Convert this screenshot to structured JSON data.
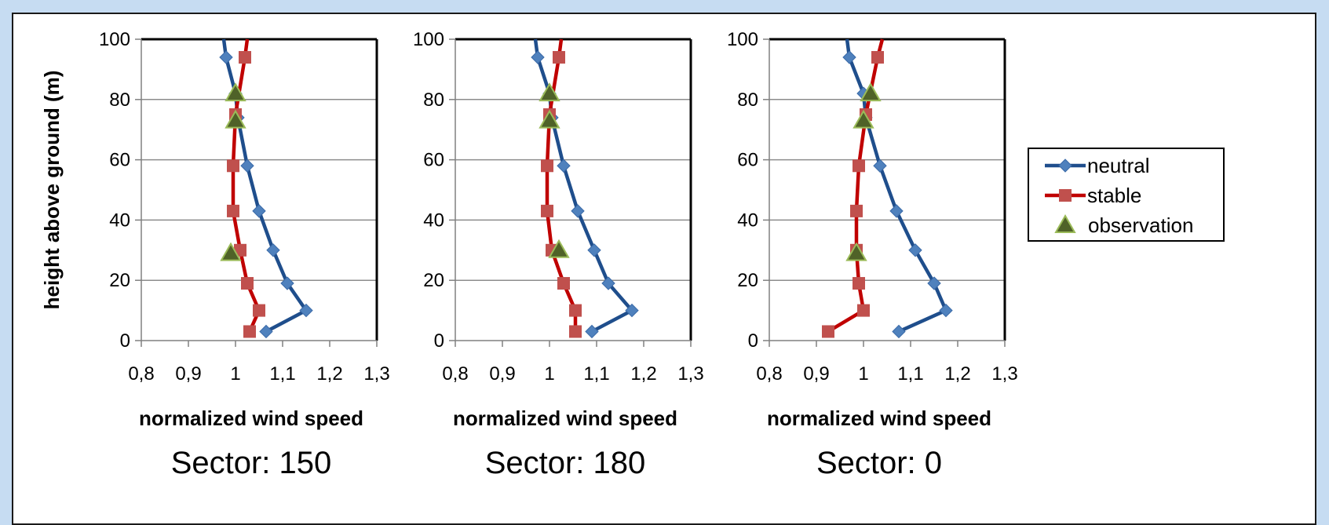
{
  "chart_data": [
    {
      "type": "line",
      "caption": "Sector: 150",
      "xlabel": "normalized wind speed",
      "ylabel": "height above ground (m)",
      "xlim": [
        0.8,
        1.3
      ],
      "ylim": [
        0,
        100
      ],
      "xticks": [
        "0,8",
        "0,9",
        "1",
        "1,1",
        "1,2",
        "1,3"
      ],
      "yticks": [
        "0",
        "20",
        "40",
        "60",
        "80",
        "100"
      ],
      "grid": "horizontal",
      "series": [
        {
          "name": "neutral",
          "color": "#1f4e8c",
          "marker_color": "#4f81bd",
          "marker": "diamond",
          "points": [
            [
              0.975,
              100
            ],
            [
              0.98,
              94
            ],
            [
              1.0,
              82
            ],
            [
              1.005,
              74
            ],
            [
              1.025,
              58
            ],
            [
              1.05,
              43
            ],
            [
              1.08,
              30
            ],
            [
              1.11,
              19
            ],
            [
              1.15,
              10
            ],
            [
              1.065,
              3
            ]
          ]
        },
        {
          "name": "stable",
          "color": "#c00000",
          "marker_color": "#c0504d",
          "marker": "square",
          "points": [
            [
              1.025,
              100
            ],
            [
              1.02,
              94
            ],
            [
              1.0,
              75
            ],
            [
              0.995,
              58
            ],
            [
              0.995,
              43
            ],
            [
              1.01,
              30
            ],
            [
              1.025,
              19
            ],
            [
              1.05,
              10
            ],
            [
              1.03,
              3
            ]
          ]
        },
        {
          "name": "observation",
          "marker_color": "#4f6228",
          "marker": "triangle",
          "line": false,
          "points": [
            [
              1.0,
              82
            ],
            [
              1.0,
              73
            ],
            [
              0.99,
              29
            ]
          ]
        }
      ]
    },
    {
      "type": "line",
      "caption": "Sector: 180",
      "xlabel": "normalized wind speed",
      "xlim": [
        0.8,
        1.3
      ],
      "ylim": [
        0,
        100
      ],
      "xticks": [
        "0,8",
        "0,9",
        "1",
        "1,1",
        "1,2",
        "1,3"
      ],
      "yticks": [
        "0",
        "20",
        "40",
        "60",
        "80",
        "100"
      ],
      "grid": "horizontal",
      "series": [
        {
          "name": "neutral",
          "color": "#1f4e8c",
          "marker_color": "#4f81bd",
          "marker": "diamond",
          "points": [
            [
              0.97,
              100
            ],
            [
              0.975,
              94
            ],
            [
              1.0,
              82
            ],
            [
              1.005,
              74
            ],
            [
              1.03,
              58
            ],
            [
              1.06,
              43
            ],
            [
              1.095,
              30
            ],
            [
              1.125,
              19
            ],
            [
              1.175,
              10
            ],
            [
              1.09,
              3
            ]
          ]
        },
        {
          "name": "stable",
          "color": "#c00000",
          "marker_color": "#c0504d",
          "marker": "square",
          "points": [
            [
              1.025,
              100
            ],
            [
              1.02,
              94
            ],
            [
              1.0,
              75
            ],
            [
              0.995,
              58
            ],
            [
              0.995,
              43
            ],
            [
              1.005,
              30
            ],
            [
              1.03,
              19
            ],
            [
              1.055,
              10
            ],
            [
              1.055,
              3
            ]
          ]
        },
        {
          "name": "observation",
          "marker_color": "#4f6228",
          "marker": "triangle",
          "line": false,
          "points": [
            [
              1.0,
              82
            ],
            [
              1.0,
              73
            ],
            [
              1.02,
              30
            ]
          ]
        }
      ]
    },
    {
      "type": "line",
      "caption": "Sector: 0",
      "xlabel": "normalized wind speed",
      "xlim": [
        0.8,
        1.3
      ],
      "ylim": [
        0,
        100
      ],
      "xticks": [
        "0,8",
        "0,9",
        "1",
        "1,1",
        "1,2",
        "1,3"
      ],
      "yticks": [
        "0",
        "20",
        "40",
        "60",
        "80",
        "100"
      ],
      "grid": "horizontal",
      "series": [
        {
          "name": "neutral",
          "color": "#1f4e8c",
          "marker_color": "#4f81bd",
          "marker": "diamond",
          "points": [
            [
              0.965,
              100
            ],
            [
              0.97,
              94
            ],
            [
              1.0,
              82
            ],
            [
              1.005,
              74
            ],
            [
              1.035,
              58
            ],
            [
              1.07,
              43
            ],
            [
              1.11,
              30
            ],
            [
              1.15,
              19
            ],
            [
              1.175,
              10
            ],
            [
              1.075,
              3
            ]
          ]
        },
        {
          "name": "stable",
          "color": "#c00000",
          "marker_color": "#c0504d",
          "marker": "square",
          "points": [
            [
              1.04,
              100
            ],
            [
              1.03,
              94
            ],
            [
              1.005,
              75
            ],
            [
              0.99,
              58
            ],
            [
              0.985,
              43
            ],
            [
              0.985,
              30
            ],
            [
              0.99,
              19
            ],
            [
              1.0,
              10
            ],
            [
              0.925,
              3
            ]
          ]
        },
        {
          "name": "observation",
          "marker_color": "#4f6228",
          "marker": "triangle",
          "line": false,
          "points": [
            [
              1.015,
              82
            ],
            [
              1.0,
              73
            ],
            [
              0.985,
              29
            ]
          ]
        }
      ]
    }
  ],
  "legend": {
    "placement": "right",
    "items": [
      {
        "label": "neutral",
        "color": "#1f4e8c",
        "marker_color": "#4f81bd",
        "marker": "diamond",
        "line": true
      },
      {
        "label": "stable",
        "color": "#c00000",
        "marker_color": "#c0504d",
        "marker": "square",
        "line": true
      },
      {
        "label": "observation",
        "marker_color": "#4f6228",
        "marker": "triangle",
        "line": false
      }
    ]
  }
}
